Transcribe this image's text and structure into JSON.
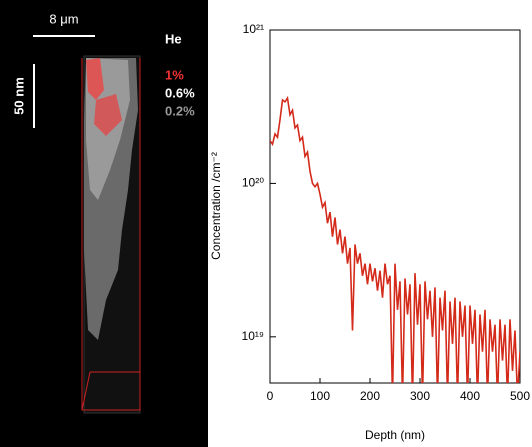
{
  "panel": {
    "scale_x": "8 μm",
    "scale_y": "50 nm",
    "element": "He",
    "levels": [
      "1%",
      "0.6%",
      "0.2%"
    ]
  },
  "chart_data": {
    "type": "line",
    "xlabel": "Depth (nm)",
    "ylabel": "Concentration /cm⁻²",
    "x": [
      0,
      5,
      10,
      15,
      20,
      25,
      30,
      35,
      40,
      45,
      50,
      55,
      60,
      65,
      70,
      75,
      80,
      85,
      90,
      95,
      100,
      105,
      110,
      115,
      120,
      125,
      130,
      135,
      140,
      145,
      150,
      155,
      160,
      165,
      170,
      175,
      180,
      185,
      190,
      195,
      200,
      205,
      210,
      215,
      220,
      225,
      230,
      235,
      240,
      245,
      250,
      255,
      260,
      265,
      270,
      275,
      280,
      285,
      290,
      295,
      300,
      305,
      310,
      315,
      320,
      325,
      330,
      335,
      340,
      345,
      350,
      355,
      360,
      365,
      370,
      375,
      380,
      385,
      390,
      395,
      400,
      405,
      410,
      415,
      420,
      425,
      430,
      435,
      440,
      445,
      450,
      455,
      460,
      465,
      470,
      475,
      480,
      485,
      490,
      495,
      500
    ],
    "values": [
      1.9e+20,
      1.8e+20,
      2.1e+20,
      2e+20,
      2.6e+20,
      3.5e+20,
      3.4e+20,
      3.6e+20,
      2.8e+20,
      3e+20,
      2.3e+20,
      2.4e+20,
      1.9e+20,
      2e+20,
      1.5e+20,
      1.6e+20,
      1.2e+20,
      1e+20,
      9.5e+19,
      1e+20,
      8.5e+19,
      7e+19,
      7.5e+19,
      5.5e+19,
      6.5e+19,
      4.5e+19,
      6e+19,
      4e+19,
      5e+19,
      3.5e+19,
      4.5e+19,
      3e+19,
      3.8e+19,
      1.1e+19,
      4e+19,
      3e+19,
      3.5e+19,
      2.5e+19,
      3e+19,
      2.2e+19,
      3e+19,
      2.3e+19,
      2.8e+19,
      2e+19,
      2.7e+19,
      1.8e+19,
      3e+19,
      2.2e+19,
      2.5e+19,
      4e+18,
      3e+19,
      1.5e+19,
      2.3e+19,
      4e+18,
      2.4e+19,
      1.4e+19,
      2.2e+19,
      4e+18,
      2.6e+19,
      1.2e+19,
      2.2e+19,
      4e+18,
      2.3e+19,
      1.3e+19,
      2e+19,
      1e+19,
      2.1e+19,
      4e+18,
      1.8e+19,
      1.1e+19,
      2e+19,
      4e+18,
      1.7e+19,
      9e+18,
      1.8e+19,
      4e+18,
      1.7e+19,
      1e+19,
      1.6e+19,
      4e+18,
      1.6e+19,
      9e+18,
      1.5e+19,
      4e+18,
      1.4e+19,
      8e+18,
      1.5e+19,
      4e+18,
      1.3e+19,
      8e+18,
      1.2e+19,
      4e+18,
      1.3e+19,
      7e+18,
      1.2e+19,
      4e+18,
      1.3e+19,
      6e+18,
      1.1e+19,
      4e+18,
      8e+18
    ],
    "color": "#d42a1a",
    "xlim": [
      0,
      500
    ],
    "xticks": [
      0,
      100,
      200,
      300,
      400,
      500
    ],
    "ylim": [
      5e+18,
      1e+21
    ],
    "log_y": true,
    "yticks": [
      {
        "value": 1e+19,
        "label": "10¹⁹"
      },
      {
        "value": 1e+20,
        "label": "10²⁰"
      },
      {
        "value": 1e+21,
        "label": "10²¹"
      }
    ]
  }
}
